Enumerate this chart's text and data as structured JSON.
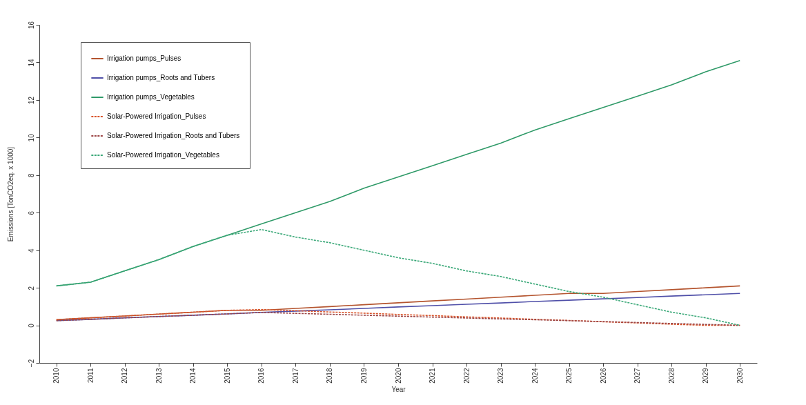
{
  "chart_data": {
    "type": "line",
    "xlabel": "Year",
    "ylabel": "Emissions [TonCO2eq. x 1000]",
    "x": [
      2010,
      2011,
      2012,
      2013,
      2014,
      2015,
      2016,
      2017,
      2018,
      2019,
      2020,
      2021,
      2022,
      2023,
      2024,
      2025,
      2026,
      2027,
      2028,
      2029,
      2030
    ],
    "series": [
      {
        "name": "Irrigation pumps_Pulses",
        "color": "#b4542e",
        "line_style": "solid",
        "values": [
          0.3,
          0.4,
          0.5,
          0.6,
          0.7,
          0.8,
          0.8,
          0.9,
          1.0,
          1.1,
          1.2,
          1.3,
          1.4,
          1.5,
          1.6,
          1.7,
          1.7,
          1.8,
          1.9,
          2.0,
          2.1
        ]
      },
      {
        "name": "Irrigation pumps_Roots and Tubers",
        "color": "#4f4fa8",
        "line_style": "solid",
        "values": [
          0.25,
          0.32,
          0.4,
          0.47,
          0.54,
          0.61,
          0.69,
          0.76,
          0.83,
          0.9,
          0.98,
          1.05,
          1.12,
          1.19,
          1.27,
          1.34,
          1.41,
          1.48,
          1.56,
          1.63,
          1.7
        ]
      },
      {
        "name": "Irrigation pumps_Vegetables",
        "color": "#2f9a68",
        "line_style": "solid",
        "values": [
          2.1,
          2.3,
          2.9,
          3.5,
          4.2,
          4.8,
          5.4,
          6.0,
          6.6,
          7.3,
          7.9,
          8.5,
          9.1,
          9.7,
          10.4,
          11.0,
          11.6,
          12.2,
          12.8,
          13.5,
          14.1
        ]
      },
      {
        "name": "Solar-Powered Irrigation_Pulses",
        "color": "#d9542a",
        "line_style": "dashed",
        "values": [
          0.3,
          0.4,
          0.5,
          0.6,
          0.7,
          0.8,
          0.84,
          0.78,
          0.71,
          0.65,
          0.58,
          0.52,
          0.45,
          0.39,
          0.32,
          0.26,
          0.19,
          0.13,
          0.06,
          0,
          0
        ]
      },
      {
        "name": "Solar-Powered Irrigation_Roots and Tubers",
        "color": "#9c4545",
        "line_style": "dashed",
        "values": [
          0.25,
          0.32,
          0.4,
          0.47,
          0.54,
          0.61,
          0.69,
          0.64,
          0.59,
          0.54,
          0.49,
          0.44,
          0.39,
          0.34,
          0.3,
          0.25,
          0.2,
          0.15,
          0.1,
          0.05,
          0
        ]
      },
      {
        "name": "Solar-Powered Irrigation_Vegetables",
        "color": "#3aa878",
        "line_style": "dashed",
        "values": [
          2.1,
          2.3,
          2.9,
          3.5,
          4.2,
          4.8,
          5.1,
          4.7,
          4.4,
          4.0,
          3.6,
          3.3,
          2.9,
          2.6,
          2.2,
          1.8,
          1.5,
          1.1,
          0.7,
          0.4,
          0
        ]
      }
    ],
    "xlim": [
      2009.5,
      2030.5
    ],
    "xticks": [
      2010,
      2011,
      2012,
      2013,
      2014,
      2015,
      2016,
      2017,
      2018,
      2019,
      2020,
      2021,
      2022,
      2023,
      2024,
      2025,
      2026,
      2027,
      2028,
      2029,
      2030
    ],
    "ylim": [
      -2,
      16
    ],
    "yticks": [
      -2,
      0,
      2,
      4,
      6,
      8,
      10,
      12,
      14,
      16
    ],
    "grid": false,
    "legend": "top left"
  }
}
